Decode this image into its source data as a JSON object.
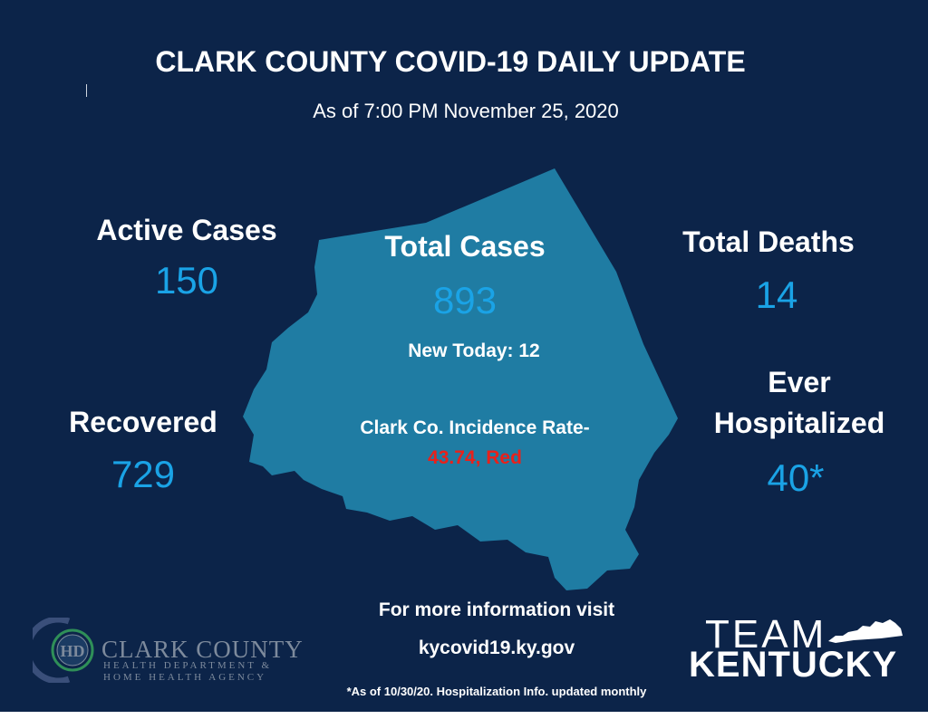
{
  "header": {
    "title": "CLARK COUNTY COVID-19 DAILY UPDATE",
    "subtitle": "As of 7:00 PM November 25, 2020"
  },
  "stats": {
    "active_label": "Active Cases",
    "active_value": "150",
    "total_cases_label": "Total Cases",
    "total_cases_value": "893",
    "new_today": "New Today: 12",
    "incidence_label": "Clark Co. Incidence Rate-",
    "incidence_value": "43.74, Red",
    "deaths_label": "Total Deaths",
    "deaths_value": "14",
    "hospitalized_label_1": "Ever",
    "hospitalized_label_2": "Hospitalized",
    "hospitalized_value": "40*",
    "recovered_label": "Recovered",
    "recovered_value": "729"
  },
  "info": {
    "line1": "For more information visit",
    "line2": "kycovid19.ky.gov",
    "footnote": "*As of 10/30/20. Hospitalization Info. updated monthly"
  },
  "logos": {
    "health_dept_line1": "CLARK COUNTY",
    "health_dept_line2": "HEALTH DEPARTMENT &",
    "health_dept_line3": "HOME HEALTH AGENCY",
    "health_dept_monogram": "HD",
    "team_kentucky_line1": "TEAM",
    "team_kentucky_line2": "KENTUCKY"
  },
  "colors": {
    "background": "#0c2449",
    "map": "#1f7ca3",
    "value_blue": "#1aa3e6",
    "incidence_red": "#e8211b",
    "logo_green": "#2f8f58"
  }
}
